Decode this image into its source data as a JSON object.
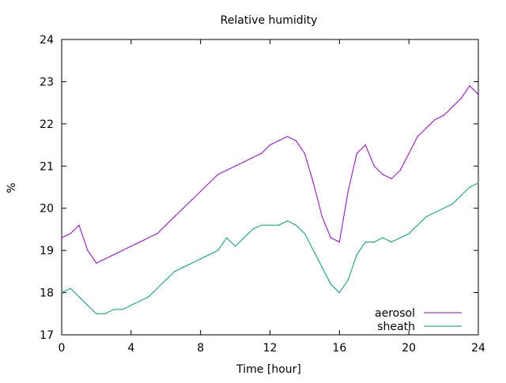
{
  "chart_data": {
    "type": "line",
    "title": "Relative humidity",
    "xlabel": "Time [hour]",
    "ylabel": "%",
    "xlim": [
      0,
      24
    ],
    "ylim": [
      17,
      24
    ],
    "x_ticks": [
      "0",
      "4",
      "8",
      "12",
      "16",
      "20",
      "24"
    ],
    "y_ticks": [
      "17",
      "18",
      "19",
      "20",
      "21",
      "22",
      "23",
      "24"
    ],
    "grid": false,
    "legend_position": "bottom-right",
    "series": [
      {
        "name": "aerosol",
        "color": "#9400d3",
        "x": [
          0,
          0.5,
          1,
          1.5,
          2,
          2.5,
          3,
          3.5,
          4,
          4.5,
          5,
          5.5,
          6,
          6.5,
          7,
          7.5,
          8,
          8.5,
          9,
          9.5,
          10,
          10.5,
          11,
          11.5,
          12,
          12.5,
          13,
          13.5,
          14,
          14.5,
          15,
          15.5,
          16,
          16.5,
          17,
          17.5,
          18,
          18.5,
          19,
          19.5,
          20,
          20.5,
          21,
          21.5,
          22,
          22.5,
          23,
          23.5,
          24
        ],
        "values": [
          19.3,
          19.4,
          19.6,
          19.0,
          18.7,
          18.8,
          18.9,
          19.0,
          19.1,
          19.2,
          19.3,
          19.4,
          19.6,
          19.8,
          20.0,
          20.2,
          20.4,
          20.6,
          20.8,
          20.9,
          21.0,
          21.1,
          21.2,
          21.3,
          21.5,
          21.6,
          21.7,
          21.6,
          21.3,
          20.6,
          19.8,
          19.3,
          19.2,
          20.4,
          21.3,
          21.5,
          21.0,
          20.8,
          20.7,
          20.9,
          21.3,
          21.7,
          21.9,
          22.1,
          22.2,
          22.4,
          22.6,
          22.9,
          22.7
        ]
      },
      {
        "name": "sheath",
        "color": "#009e73",
        "x": [
          0,
          0.5,
          1,
          1.5,
          2,
          2.5,
          3,
          3.5,
          4,
          4.5,
          5,
          5.5,
          6,
          6.5,
          7,
          7.5,
          8,
          8.5,
          9,
          9.5,
          10,
          10.5,
          11,
          11.5,
          12,
          12.5,
          13,
          13.5,
          14,
          14.5,
          15,
          15.5,
          16,
          16.5,
          17,
          17.5,
          18,
          18.5,
          19,
          19.5,
          20,
          20.5,
          21,
          21.5,
          22,
          22.5,
          23,
          23.5,
          24
        ],
        "values": [
          18.0,
          18.1,
          17.9,
          17.7,
          17.5,
          17.5,
          17.6,
          17.6,
          17.7,
          17.8,
          17.9,
          18.1,
          18.3,
          18.5,
          18.6,
          18.7,
          18.8,
          18.9,
          19.0,
          19.3,
          19.1,
          19.3,
          19.5,
          19.6,
          19.6,
          19.6,
          19.7,
          19.6,
          19.4,
          19.0,
          18.6,
          18.2,
          18.0,
          18.3,
          18.9,
          19.2,
          19.2,
          19.3,
          19.2,
          19.3,
          19.4,
          19.6,
          19.8,
          19.9,
          20.0,
          20.1,
          20.3,
          20.5,
          20.6
        ]
      }
    ]
  }
}
